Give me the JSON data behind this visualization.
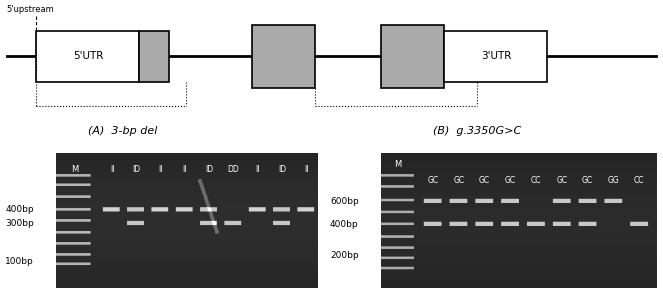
{
  "fig_width": 6.63,
  "fig_height": 2.94,
  "bg_color": "#ffffff",
  "upstream_label": "5'upstream",
  "panel_a_label": "(A)  3-bp del",
  "panel_b_label": "(B)  g.3350G>C",
  "gel_a_marker": "M",
  "gel_a_lanes": [
    "II",
    "ID",
    "II",
    "II",
    "ID",
    "DD",
    "II",
    "ID",
    "II"
  ],
  "gel_b_marker": "M",
  "gel_b_lanes": [
    "GC",
    "GC",
    "GC",
    "GC",
    "CC",
    "GC",
    "GC",
    "GG",
    "CC"
  ],
  "gel_bg_dark": "#1a1a1a",
  "gel_bg_mid": "#2d2d2d",
  "band_color_a": "#d0d0d0",
  "band_color_b": "#c8c8c8",
  "ladder_color": "#b0b0b0",
  "white": "#ffffff",
  "black": "#000000",
  "gene_fontsize": 7.5,
  "label_fontsize": 6.5,
  "gel_label_fontsize": 5.5,
  "gel_marker_fontsize": 6.0
}
